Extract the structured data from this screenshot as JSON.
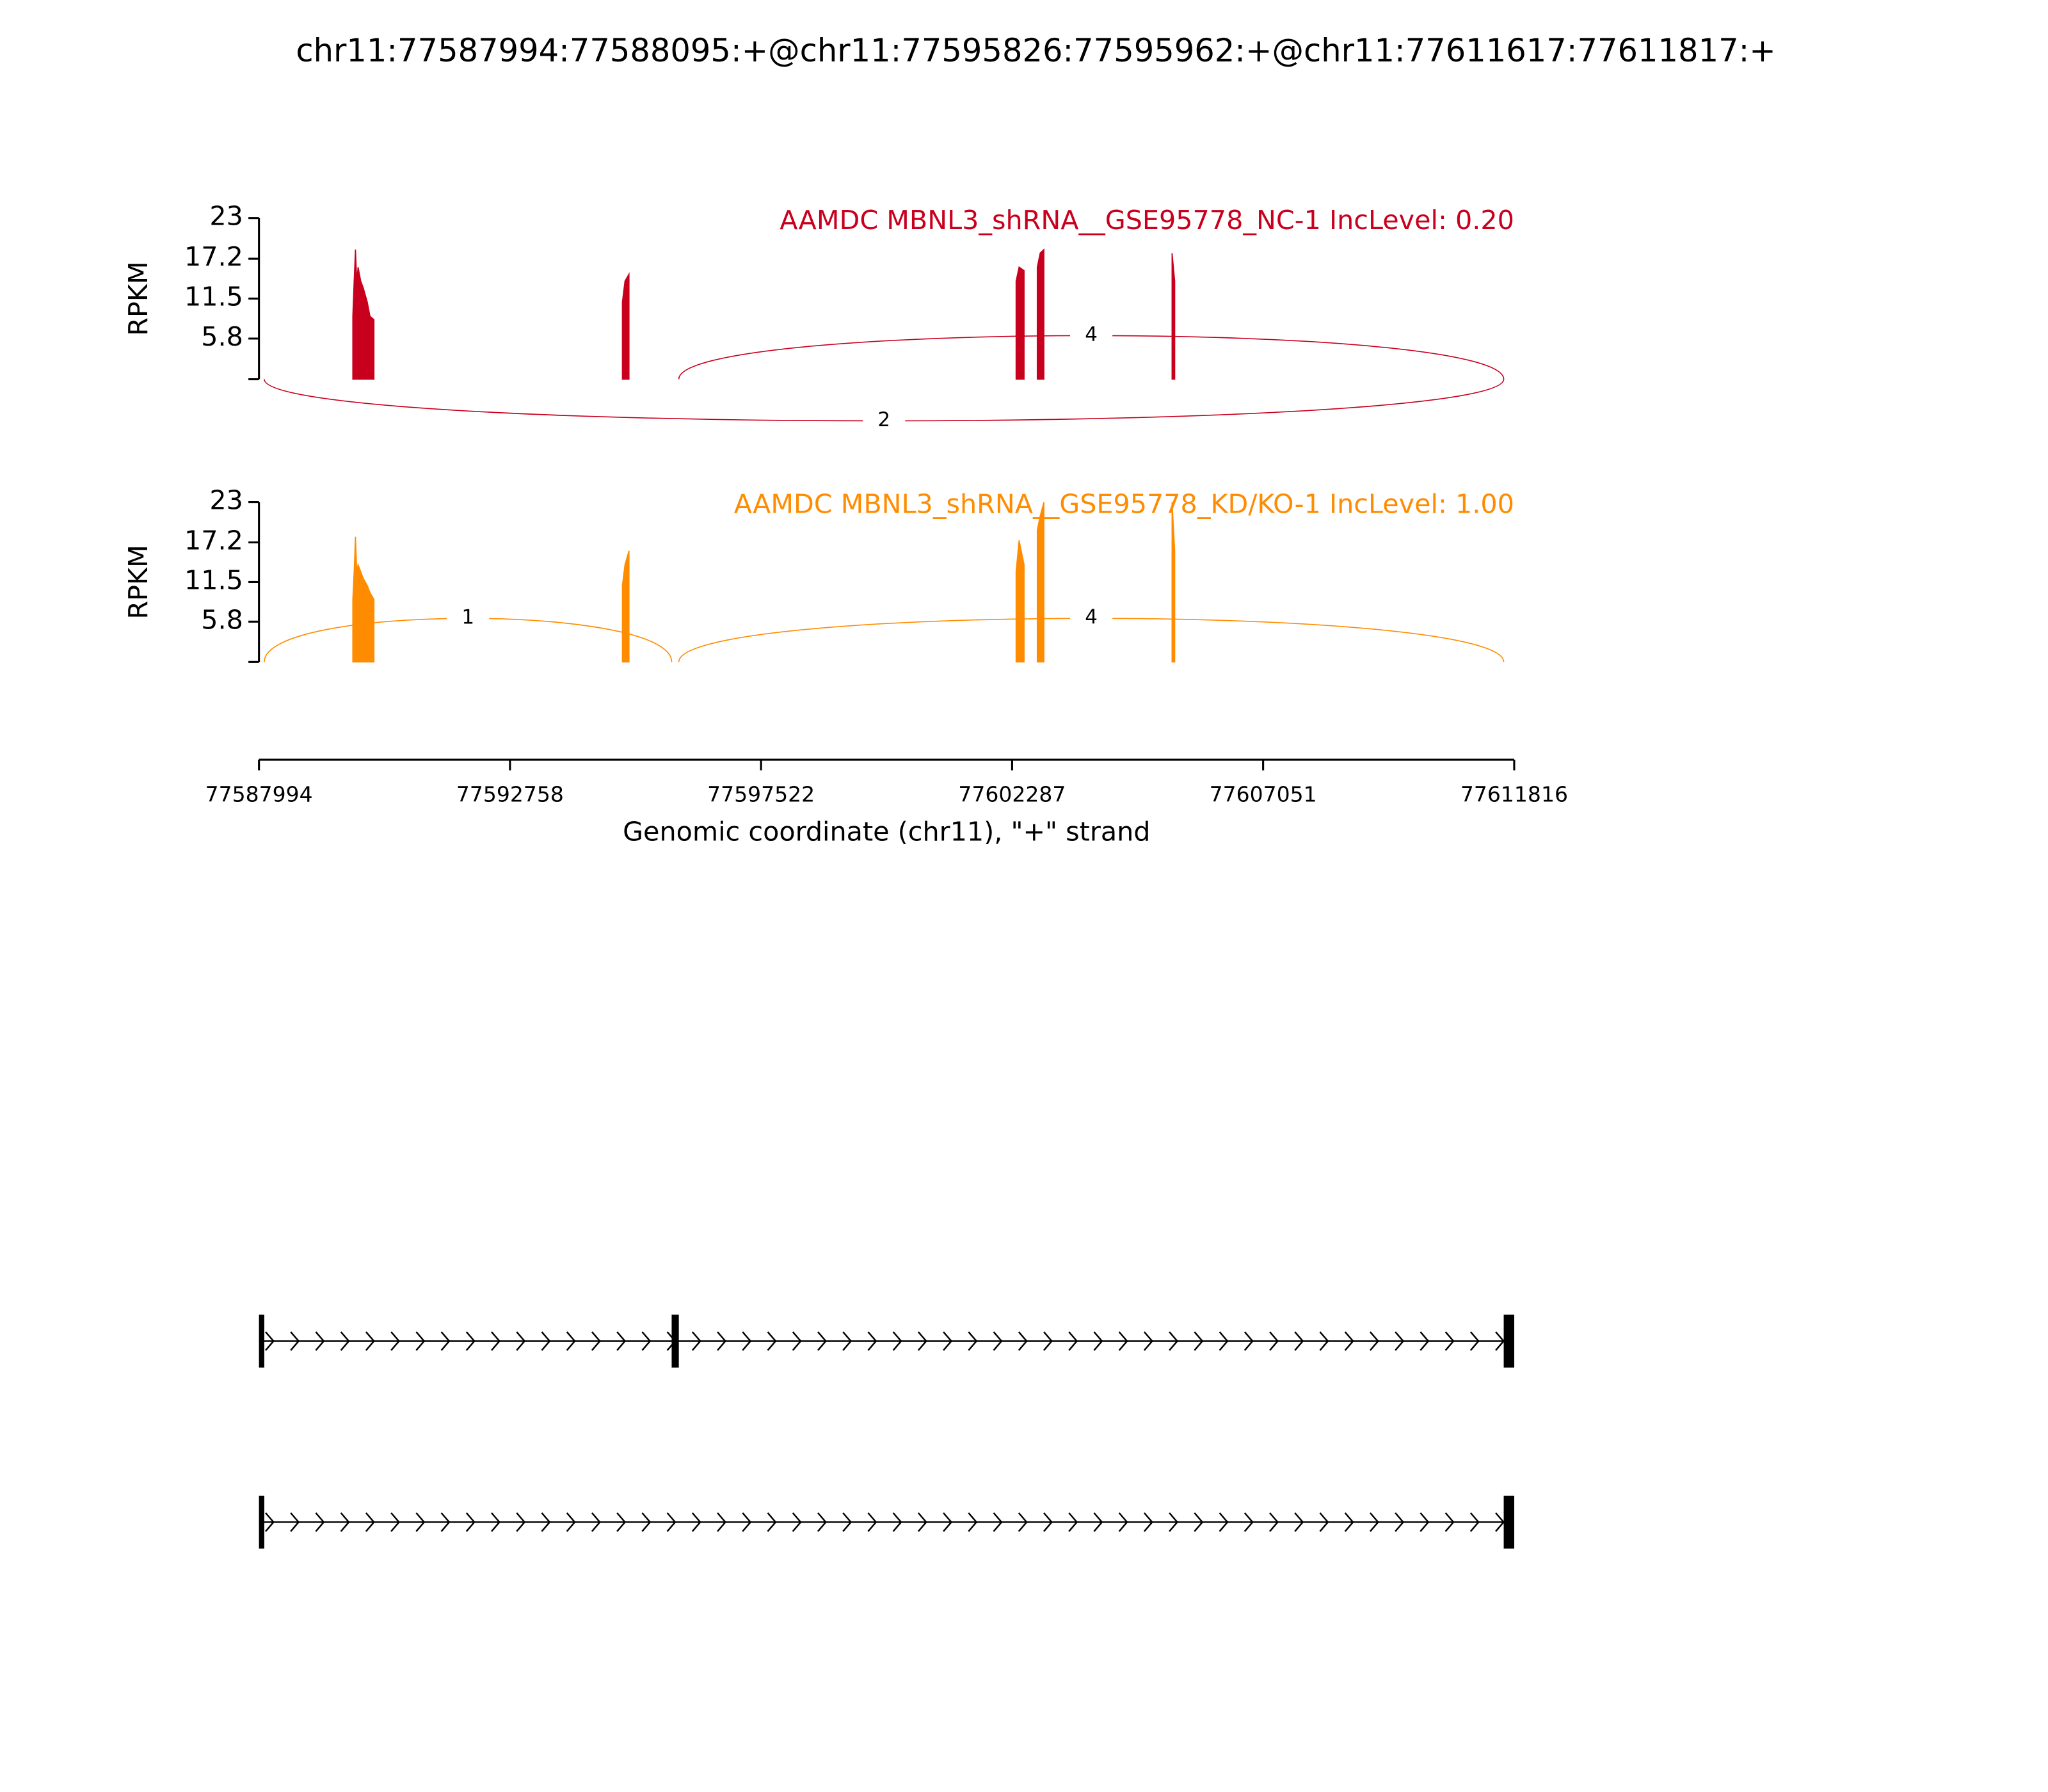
{
  "chart_data": {
    "type": "sashimi",
    "title": "chr11:77587994:77588095:+@chr11:77595826:77595962:+@chr11:77611617:77611817:+",
    "xlabel": "Genomic coordinate (chr11), \"+\" strand",
    "xlim": [
      77587994,
      77611816
    ],
    "xticks": [
      77587994,
      77592758,
      77597522,
      77602287,
      77607051,
      77611816
    ],
    "panels": [
      {
        "label": "AAMDC MBNL3_shRNA__GSE95778_NC-1 IncLevel: 0.20",
        "color": "#c8001e",
        "ylabel": "RPKM",
        "ylim": [
          0,
          23
        ],
        "yticks": [
          5.8,
          11.5,
          17.2,
          23
        ],
        "x": [
          77589775,
          77589800,
          77589825,
          77589850,
          77589875,
          77589925,
          77589975,
          77590050,
          77590100,
          77590176,
          null,
          77594891,
          77594940,
          77595016,
          null,
          77602363,
          77602420,
          77602514,
          null,
          77602765,
          77602820,
          77602890,
          null,
          77605323,
          77605373
        ],
        "values": [
          9,
          14,
          18.5,
          14,
          16,
          14,
          13,
          11,
          9,
          8.5,
          null,
          11,
          14,
          15,
          null,
          14,
          16,
          15.5,
          null,
          16,
          18,
          18.5,
          null,
          18,
          14
        ],
        "junctions": [
          {
            "start": 77595962,
            "end": 77611617,
            "count": 4,
            "side": "above"
          },
          {
            "start": 77588095,
            "end": 77611617,
            "count": 2,
            "side": "below"
          }
        ]
      },
      {
        "label": "AAMDC MBNL3_shRNA__GSE95778_KD/KO-1 IncLevel: 1.00",
        "color": "#ff8c00",
        "ylabel": "RPKM",
        "ylim": [
          0,
          23
        ],
        "yticks": [
          5.8,
          11.5,
          17.2,
          23
        ],
        "x": [
          77589775,
          77589800,
          77589825,
          77589850,
          77589875,
          77589925,
          77589975,
          77590050,
          77590100,
          77590176,
          null,
          77594891,
          77594940,
          77595016,
          null,
          77602363,
          77602420,
          77602514,
          null,
          77602765,
          77602820,
          77602890,
          null,
          77605323,
          77605373
        ],
        "values": [
          9,
          13,
          18,
          13,
          14,
          13,
          12,
          11,
          10,
          9,
          null,
          11,
          14,
          16,
          null,
          13,
          17.5,
          14,
          null,
          19,
          21,
          23,
          null,
          23,
          16
        ],
        "junctions": [
          {
            "start": 77588095,
            "end": 77595826,
            "count": 1,
            "side": "above"
          },
          {
            "start": 77595962,
            "end": 77611617,
            "count": 4,
            "side": "above"
          }
        ]
      }
    ],
    "isoforms": [
      {
        "exons": [
          [
            77587994,
            77588095
          ],
          [
            77595826,
            77595962
          ],
          [
            77611617,
            77611817
          ]
        ]
      },
      {
        "exons": [
          [
            77587994,
            77588095
          ],
          [
            77611617,
            77611817
          ]
        ]
      }
    ]
  }
}
